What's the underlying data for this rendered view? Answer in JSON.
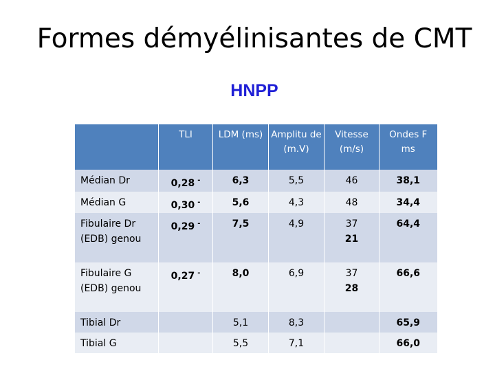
{
  "title": "Formes démyélinisantes de CMT",
  "subtitle": "HNPP",
  "colors": {
    "header_bg": "#4f81bd",
    "row_dark": "#d0d8e8",
    "row_light": "#e9edf4",
    "subtitle": "#1f1fd6"
  },
  "table": {
    "headers": [
      "",
      "TLI",
      "LDM (ms)",
      "Amplitu de (m.V)",
      "Vitesse (m/s)",
      "Ondes F ms"
    ],
    "rows": [
      {
        "label": "Médian Dr",
        "tli": "0,28",
        "tli_mark": "-",
        "ldm": "6,3",
        "amp": "5,5",
        "vit": "46",
        "vit2": "",
        "ondes": "38,1"
      },
      {
        "label": "Médian G",
        "tli": "0,30",
        "tli_mark": "-",
        "ldm": "5,6",
        "amp": "4,3",
        "vit": "48",
        "vit2": "",
        "ondes": "34,4"
      },
      {
        "label": "Fibulaire Dr (EDB) genou",
        "tli": "0,29",
        "tli_mark": "-",
        "ldm": "7,5",
        "amp": "4,9",
        "vit": "37",
        "vit2": "21",
        "ondes": "64,4"
      },
      {
        "label": "Fibulaire G (EDB) genou",
        "tli": "0,27",
        "tli_mark": "-",
        "ldm": "8,0",
        "amp": "6,9",
        "vit": "37",
        "vit2": "28",
        "ondes": "66,6"
      },
      {
        "label": "Tibial Dr",
        "tli": "",
        "tli_mark": "",
        "ldm": "5,1",
        "amp": "8,3",
        "vit": "",
        "vit2": "",
        "ondes": "65,9"
      },
      {
        "label": "Tibial G",
        "tli": "",
        "tli_mark": "",
        "ldm": "5,5",
        "amp": "7,1",
        "vit": "",
        "vit2": "",
        "ondes": "66,0"
      }
    ]
  }
}
